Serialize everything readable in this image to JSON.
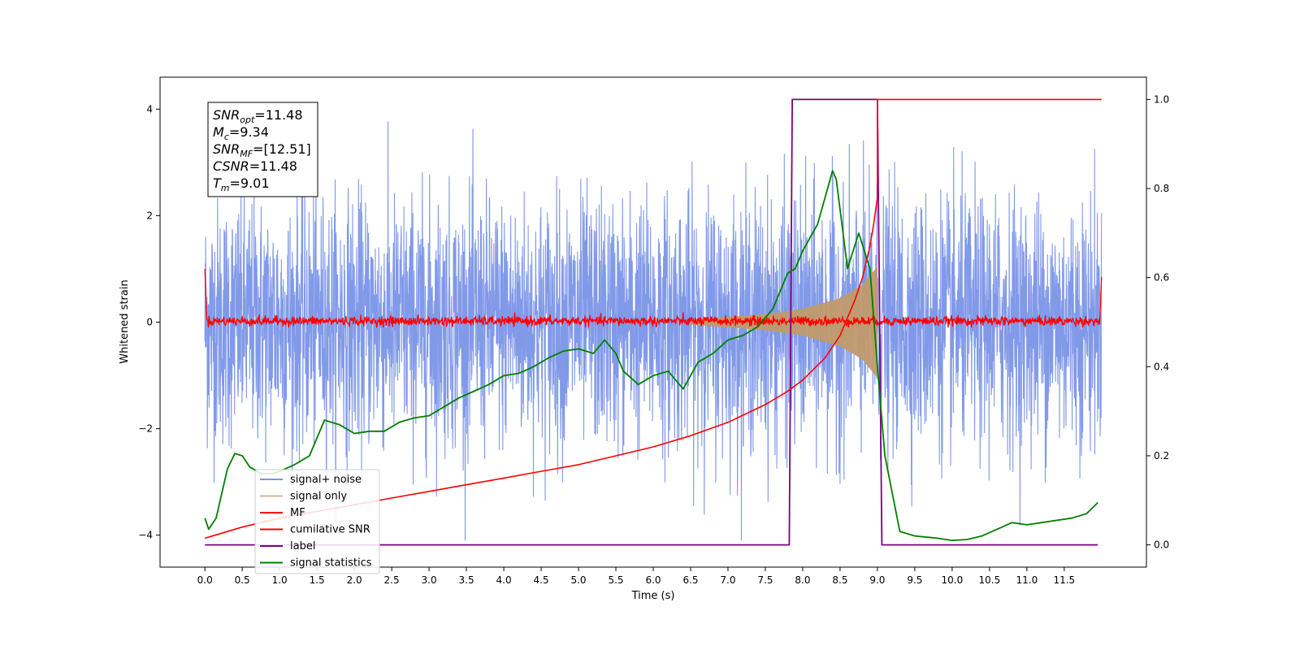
{
  "chart_data": {
    "type": "line",
    "xlabel": "Time (s)",
    "ylabel": "Whitened strain",
    "ylabel_right": "",
    "xlim": [
      -0.6,
      12.6
    ],
    "ylim": [
      -4.6,
      4.6
    ],
    "ylim_right": [
      -0.05,
      1.05
    ],
    "x_ticks": [
      0.0,
      0.5,
      1.0,
      1.5,
      2.0,
      2.5,
      3.0,
      3.5,
      4.0,
      4.5,
      5.0,
      5.5,
      6.0,
      6.5,
      7.0,
      7.5,
      8.0,
      8.5,
      9.0,
      9.5,
      10.0,
      10.5,
      11.0,
      11.5
    ],
    "x_tick_labels": [
      "0.0",
      "0.5",
      "1.0",
      "1.5",
      "2.0",
      "2.5",
      "3.0",
      "3.5",
      "4.0",
      "4.5",
      "5.0",
      "5.5",
      "6.0",
      "6.5",
      "7.0",
      "7.5",
      "8.0",
      "8.5",
      "9.0",
      "9.5",
      "10.0",
      "10.5",
      "11.0",
      "11.5"
    ],
    "y_ticks": [
      -4,
      -2,
      0,
      2,
      4
    ],
    "y_tick_labels": [
      "−4",
      "−2",
      "0",
      "2",
      "4"
    ],
    "y_right_ticks": [
      0.0,
      0.2,
      0.4,
      0.6,
      0.8,
      1.0
    ],
    "y_right_tick_labels": [
      "0.0",
      "0.2",
      "0.4",
      "0.6",
      "0.8",
      "1.0"
    ],
    "grid": false,
    "legend_position": "lower-left",
    "colors": {
      "signal_noise": "#7a94e8",
      "signal_only": "#c19a6b",
      "mf": "#ff0000",
      "cumulative_snr": "#ff0000",
      "label": "#800080",
      "signal_statistics": "#008000"
    },
    "annotation": [
      {
        "sym": "SNR",
        "sub": "opt",
        "val": "=11.48"
      },
      {
        "sym": "M",
        "sub": "c",
        "val": "=9.34"
      },
      {
        "sym": "SNR",
        "sub": "MF",
        "val": "=[12.51]"
      },
      {
        "sym": "CSNR",
        "sub": "",
        "val": "=11.48"
      },
      {
        "sym": "T",
        "sub": "m",
        "val": "=9.01"
      }
    ],
    "series": [
      {
        "name": "signal+ noise",
        "axis": "left",
        "style": "dense-noise",
        "x_range": [
          0.0,
          12.0
        ],
        "band_sd": 1.0,
        "peak_envelope": [
          -4.1,
          4.1
        ]
      },
      {
        "name": "signal only",
        "axis": "left",
        "style": "chirp-envelope",
        "x_range": [
          6.5,
          9.0
        ],
        "amplitude": [
          [
            6.5,
            0.05
          ],
          [
            7.0,
            0.1
          ],
          [
            7.5,
            0.15
          ],
          [
            8.0,
            0.25
          ],
          [
            8.5,
            0.45
          ],
          [
            8.8,
            0.7
          ],
          [
            9.0,
            1.05
          ]
        ]
      },
      {
        "name": "MF",
        "axis": "left",
        "style": "small-noise",
        "x_range": [
          0.0,
          12.0
        ],
        "band": [
          -0.1,
          0.15
        ],
        "edge_spikes": [
          [
            0.0,
            1.0
          ],
          [
            12.0,
            0.85
          ]
        ]
      },
      {
        "name": "cumilative SNR",
        "axis": "right",
        "x": [
          0.0,
          0.5,
          1.0,
          1.5,
          2.0,
          2.5,
          3.0,
          3.5,
          4.0,
          4.5,
          5.0,
          5.5,
          6.0,
          6.5,
          7.0,
          7.5,
          7.8,
          8.0,
          8.3,
          8.5,
          8.7,
          8.8,
          8.9,
          8.95,
          9.0,
          9.0,
          12.0
        ],
        "values": [
          0.015,
          0.04,
          0.06,
          0.075,
          0.09,
          0.105,
          0.12,
          0.135,
          0.15,
          0.165,
          0.18,
          0.2,
          0.22,
          0.245,
          0.275,
          0.315,
          0.345,
          0.37,
          0.42,
          0.47,
          0.55,
          0.6,
          0.67,
          0.72,
          0.78,
          1.0,
          1.0
        ]
      },
      {
        "name": "label",
        "axis": "right",
        "x": [
          0.0,
          7.82,
          7.86,
          9.0,
          9.06,
          11.95
        ],
        "values": [
          0.0,
          0.0,
          1.0,
          1.0,
          0.0,
          0.0
        ]
      },
      {
        "name": "signal statistics",
        "axis": "right",
        "x": [
          0.0,
          0.05,
          0.15,
          0.3,
          0.4,
          0.5,
          0.6,
          0.75,
          0.9,
          1.0,
          1.2,
          1.4,
          1.6,
          1.8,
          2.0,
          2.2,
          2.4,
          2.6,
          2.8,
          3.0,
          3.2,
          3.4,
          3.6,
          3.8,
          4.0,
          4.2,
          4.4,
          4.6,
          4.8,
          5.0,
          5.2,
          5.35,
          5.5,
          5.6,
          5.8,
          6.0,
          6.2,
          6.4,
          6.6,
          6.8,
          7.0,
          7.2,
          7.4,
          7.6,
          7.8,
          7.9,
          8.0,
          8.2,
          8.4,
          8.45,
          8.6,
          8.75,
          8.9,
          9.0,
          9.1,
          9.3,
          9.5,
          9.8,
          10.0,
          10.2,
          10.4,
          10.6,
          10.8,
          11.0,
          11.2,
          11.4,
          11.6,
          11.8,
          11.95
        ],
        "values": [
          0.06,
          0.035,
          0.06,
          0.17,
          0.205,
          0.2,
          0.175,
          0.16,
          0.16,
          0.165,
          0.18,
          0.2,
          0.28,
          0.27,
          0.25,
          0.255,
          0.255,
          0.275,
          0.285,
          0.29,
          0.31,
          0.33,
          0.345,
          0.36,
          0.38,
          0.385,
          0.4,
          0.42,
          0.435,
          0.44,
          0.43,
          0.46,
          0.43,
          0.39,
          0.36,
          0.38,
          0.39,
          0.35,
          0.41,
          0.43,
          0.46,
          0.47,
          0.49,
          0.53,
          0.61,
          0.62,
          0.66,
          0.72,
          0.84,
          0.82,
          0.62,
          0.7,
          0.62,
          0.4,
          0.2,
          0.03,
          0.02,
          0.015,
          0.01,
          0.012,
          0.02,
          0.035,
          0.05,
          0.045,
          0.05,
          0.055,
          0.06,
          0.07,
          0.095
        ]
      }
    ]
  }
}
